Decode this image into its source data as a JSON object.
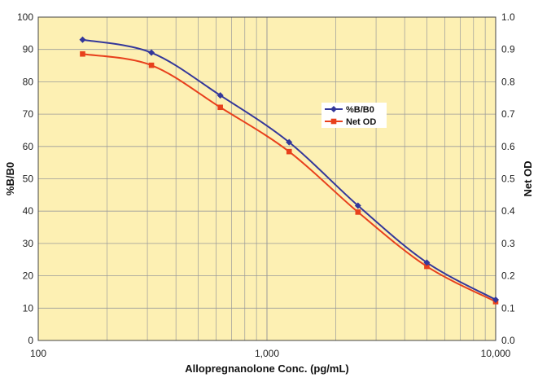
{
  "chart_data": {
    "type": "line",
    "xlabel": "Allopregnanolone Conc. (pg/mL)",
    "ylabel": "%B/B0",
    "y2label": "Net OD",
    "x_scale": "log",
    "xlim": [
      100,
      10000
    ],
    "ylim": [
      0,
      100
    ],
    "y2lim": [
      0.0,
      1.0
    ],
    "x_ticks": [
      100,
      1000,
      10000
    ],
    "x_tick_labels": [
      "100",
      "1,000",
      "10,000"
    ],
    "y_ticks": [
      0,
      10,
      20,
      30,
      40,
      50,
      60,
      70,
      80,
      90,
      100
    ],
    "y_tick_labels": [
      "0",
      "10",
      "20",
      "30",
      "40",
      "50",
      "60",
      "70",
      "80",
      "90",
      "100"
    ],
    "y2_ticks": [
      0.0,
      0.1,
      0.2,
      0.3,
      0.4,
      0.5,
      0.6,
      0.7,
      0.8,
      0.9,
      1.0
    ],
    "y2_tick_labels": [
      "0.0",
      "0.1",
      "0.2",
      "0.3",
      "0.4",
      "0.5",
      "0.6",
      "0.7",
      "0.8",
      "0.9",
      "1.0"
    ],
    "grid": true,
    "legend_position": "center-right",
    "background_color": "#fdf0b3",
    "series": [
      {
        "name": "%B/B0",
        "axis": "left",
        "color": "#33379a",
        "marker": "diamond",
        "x": [
          156.25,
          312.5,
          625,
          1250,
          2500,
          5000,
          10000
        ],
        "y": [
          93.0,
          89.0,
          75.8,
          61.3,
          41.7,
          24.1,
          12.6
        ]
      },
      {
        "name": "Net OD",
        "axis": "right",
        "color": "#e8401c",
        "marker": "square",
        "x": [
          156.25,
          312.5,
          625,
          1250,
          2500,
          5000,
          10000
        ],
        "y": [
          0.886,
          0.851,
          0.721,
          0.584,
          0.397,
          0.229,
          0.12
        ]
      }
    ]
  }
}
